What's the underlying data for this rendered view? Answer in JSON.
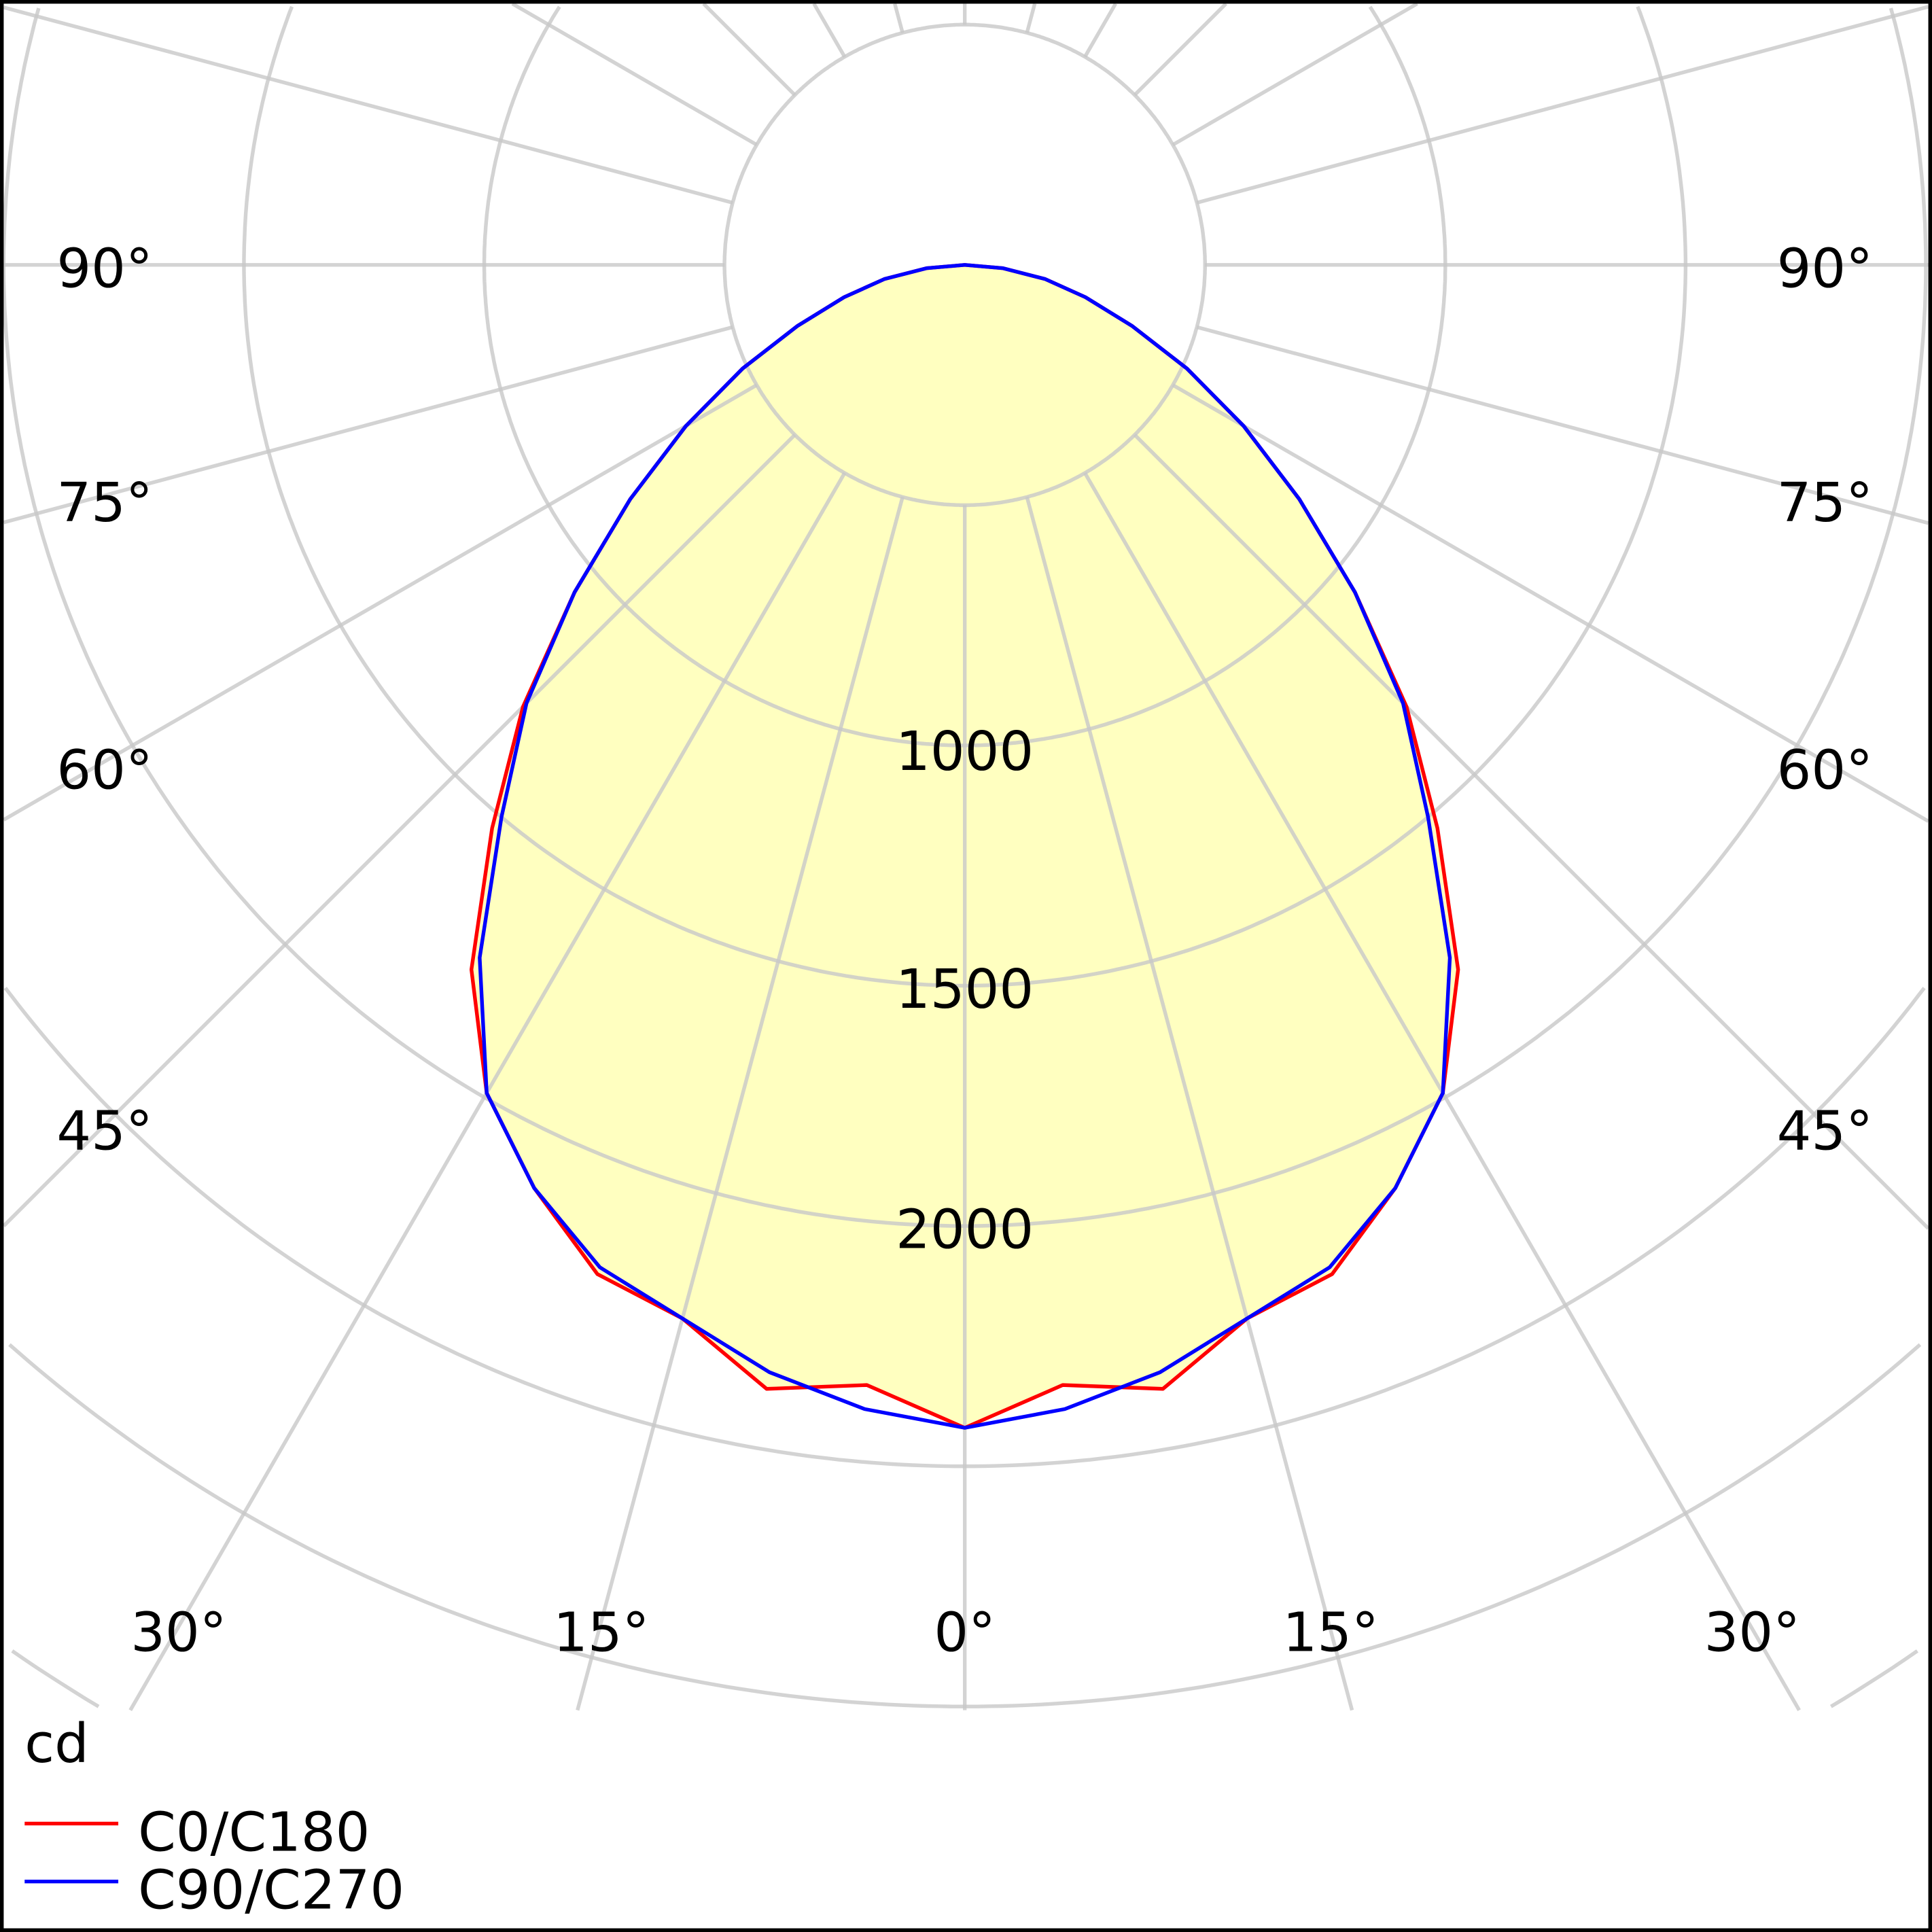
{
  "chart_data": {
    "type": "polar",
    "unit_label": "cd",
    "radial_tick_labels": [
      "1000",
      "1500",
      "2000"
    ],
    "radial_rings": [
      500,
      1000,
      1500,
      2000,
      2500,
      3000,
      3500
    ],
    "angle_labels_left": [
      "90°",
      "75°",
      "60°",
      "45°"
    ],
    "angle_labels_right": [
      "90°",
      "75°",
      "60°",
      "45°"
    ],
    "angle_labels_bottom": [
      "30°",
      "15°",
      "0°",
      "15°",
      "30°"
    ],
    "grid": true,
    "legend_position": "bottom-left",
    "fill_color": "#ffffc0",
    "gamma": [
      0,
      5,
      10,
      15,
      20,
      25,
      30,
      35,
      40,
      45,
      50,
      55,
      60,
      65,
      70,
      75,
      80,
      85,
      90
    ],
    "series": [
      {
        "name": "C0/C180",
        "color": "#ff0000",
        "values": [
          2420,
          2340,
          2375,
          2270,
          2235,
          2120,
          1990,
          1790,
          1530,
          1300,
          1060,
          850,
          670,
          510,
          370,
          260,
          170,
          80,
          0
        ]
      },
      {
        "name": "C90/C270",
        "color": "#0000ff",
        "values": [
          2420,
          2390,
          2340,
          2270,
          2220,
          2120,
          1990,
          1760,
          1500,
          1290,
          1060,
          850,
          670,
          510,
          370,
          260,
          170,
          80,
          0
        ]
      }
    ]
  }
}
